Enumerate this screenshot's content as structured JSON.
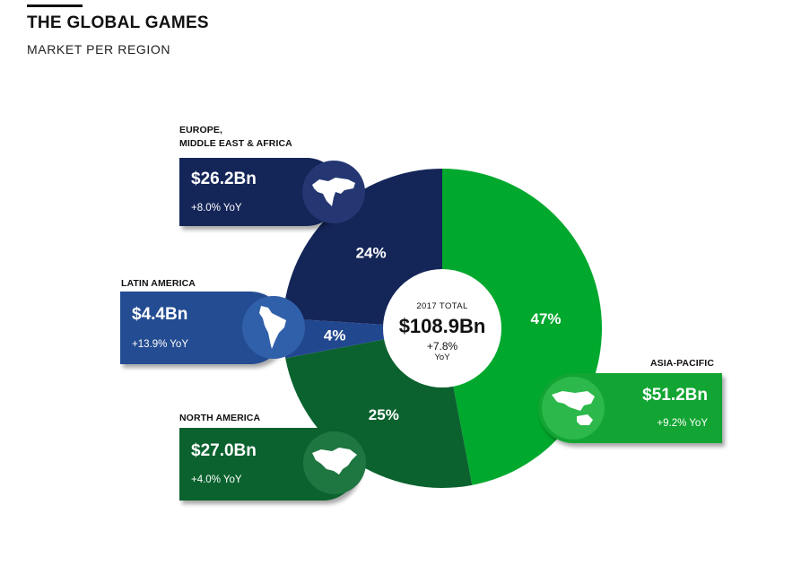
{
  "header": {
    "title": "THE GLOBAL GAMES",
    "subtitle": "MARKET PER REGION"
  },
  "total": {
    "label": "2017 TOTAL",
    "value": "$108.9Bn",
    "growth": "+7.8%",
    "growth_unit": "YoY"
  },
  "colors": {
    "asia_pacific": "#00a82d",
    "north_america": "#0b622e",
    "latin_america": "#21478f",
    "emea": "#142558",
    "asia_card": "#12a533",
    "na_card": "#0b622e",
    "latam_card": "#244c92",
    "emea_card": "#142558"
  },
  "chart_data": {
    "type": "pie",
    "title": "THE GLOBAL GAMES — MARKET PER REGION",
    "total_label": "2017 TOTAL",
    "total_value_bn": 108.9,
    "total_yoy_pct": 7.8,
    "slices": [
      {
        "name": "ASIA-PACIFIC",
        "pct": 47,
        "pct_label": "47%",
        "value_bn": 51.2,
        "amount": "$51.2Bn",
        "yoy": "+9.2% YoY"
      },
      {
        "name": "NORTH AMERICA",
        "pct": 25,
        "pct_label": "25%",
        "value_bn": 27.0,
        "amount": "$27.0Bn",
        "yoy": "+4.0% YoY"
      },
      {
        "name": "LATIN AMERICA",
        "pct": 4,
        "pct_label": "4%",
        "value_bn": 4.4,
        "amount": "$4.4Bn",
        "yoy": "+13.9% YoY"
      },
      {
        "name": "EUROPE, MIDDLE EAST & AFRICA",
        "pct": 24,
        "pct_label": "24%",
        "value_bn": 26.2,
        "amount": "$26.2Bn",
        "yoy": "+8.0% YoY"
      }
    ]
  },
  "regions": {
    "emea": {
      "label_line1": "EUROPE,",
      "label_line2": "MIDDLE EAST & AFRICA",
      "amount": "$26.2Bn",
      "yoy": "+8.0% YoY",
      "map_icon": "europe-africa-map-icon"
    },
    "latam": {
      "label": "LATIN AMERICA",
      "amount": "$4.4Bn",
      "yoy": "+13.9% YoY",
      "map_icon": "south-america-map-icon"
    },
    "na": {
      "label": "NORTH AMERICA",
      "amount": "$27.0Bn",
      "yoy": "+4.0% YoY",
      "map_icon": "north-america-map-icon"
    },
    "apac": {
      "label": "ASIA-PACIFIC",
      "amount": "$51.2Bn",
      "yoy": "+9.2% YoY",
      "map_icon": "asia-pacific-map-icon"
    }
  }
}
